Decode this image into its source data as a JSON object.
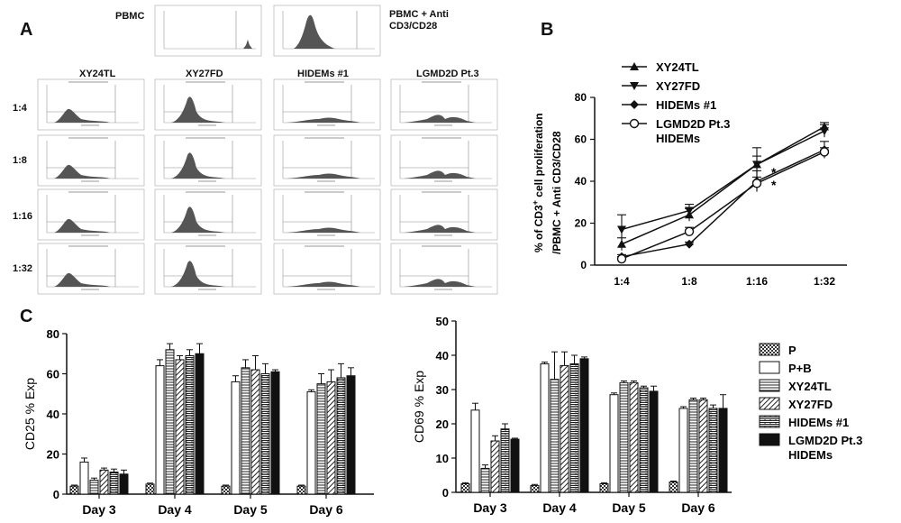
{
  "panels": {
    "a": "A",
    "b": "B",
    "c": "C"
  },
  "flow": {
    "top_labels": [
      "PBMC",
      "PBMC + Anti\nCD3/CD28"
    ],
    "columns": [
      "XY24TL",
      "XY27FD",
      "HIDEMs #1",
      "LGMD2D Pt.3"
    ],
    "rows": [
      "1:4",
      "1:8",
      "1:16",
      "1:32"
    ]
  },
  "chart_data": [
    {
      "id": "B",
      "type": "line",
      "title": "",
      "xlabel": "",
      "ylabel": "% of CD3+ cell proliferation /PBMC + Anti CD3/CD28",
      "ylabel_line1": "% of CD3",
      "ylabel_sup": "+",
      "ylabel_line1_rest": " cell proliferation",
      "ylabel_line2": "/PBMC + Anti CD3/CD28",
      "categories": [
        "1:4",
        "1:8",
        "1:16",
        "1:32"
      ],
      "ylim": [
        0,
        80
      ],
      "yticks": [
        0,
        20,
        40,
        60,
        80
      ],
      "series": [
        {
          "name": "XY24TL",
          "marker": "triangle-up",
          "values": [
            10,
            24,
            48,
            66
          ],
          "err": [
            3,
            3,
            4,
            2
          ]
        },
        {
          "name": "XY27FD",
          "marker": "triangle-down",
          "values": [
            17,
            26,
            48,
            64
          ],
          "err": [
            7,
            3,
            8,
            3
          ]
        },
        {
          "name": "HIDEMs #1",
          "marker": "diamond",
          "values": [
            4,
            10,
            40,
            55
          ],
          "err": [
            1,
            1,
            5,
            4
          ]
        },
        {
          "name": "LGMD2D Pt.3\nHIDEMs",
          "marker": "circle-open",
          "values": [
            3,
            16,
            39,
            54
          ],
          "err": [
            1,
            2,
            3,
            2
          ]
        }
      ],
      "annotations": [
        "*",
        "*"
      ],
      "legend": "top-left"
    },
    {
      "id": "C-left",
      "type": "bar",
      "ylabel": "CD25 % Exp",
      "categories": [
        "Day 3",
        "Day 4",
        "Day 5",
        "Day 6"
      ],
      "ylim": [
        0,
        80
      ],
      "yticks": [
        0,
        20,
        40,
        60,
        80
      ],
      "series": [
        {
          "name": "P",
          "pattern": "checker",
          "values": [
            4,
            5,
            4,
            4
          ],
          "err": [
            0.5,
            0.5,
            0.5,
            0.5
          ]
        },
        {
          "name": "P+B",
          "pattern": "white",
          "values": [
            16,
            64,
            56,
            51
          ],
          "err": [
            2,
            3,
            3,
            1
          ]
        },
        {
          "name": "XY24TL",
          "pattern": "hlines",
          "values": [
            7,
            72,
            63,
            55
          ],
          "err": [
            1,
            3,
            4,
            5
          ]
        },
        {
          "name": "XY27FD",
          "pattern": "diag",
          "values": [
            12,
            67,
            62,
            56
          ],
          "err": [
            1,
            2,
            7,
            6
          ]
        },
        {
          "name": "HIDEMs #1",
          "pattern": "brick",
          "values": [
            11,
            69,
            60,
            58
          ],
          "err": [
            1.5,
            3,
            5,
            7
          ]
        },
        {
          "name": "LGMD2D Pt.3\nHIDEMs",
          "pattern": "black",
          "values": [
            10,
            70,
            61,
            59
          ],
          "err": [
            2,
            5,
            1,
            4
          ]
        }
      ]
    },
    {
      "id": "C-right",
      "type": "bar",
      "ylabel": "CD69 % Exp",
      "categories": [
        "Day 3",
        "Day 4",
        "Day 5",
        "Day 6"
      ],
      "ylim": [
        0,
        50
      ],
      "yticks": [
        0,
        10,
        20,
        30,
        40,
        50
      ],
      "series": [
        {
          "name": "P",
          "pattern": "checker",
          "values": [
            2.5,
            2,
            2.5,
            3
          ],
          "err": [
            0.3,
            0.3,
            0.3,
            0.3
          ]
        },
        {
          "name": "P+B",
          "pattern": "white",
          "values": [
            24,
            37.5,
            28.5,
            24.5
          ],
          "err": [
            2,
            0.5,
            0.5,
            0.5
          ]
        },
        {
          "name": "XY24TL",
          "pattern": "hlines",
          "values": [
            7,
            33,
            32,
            27
          ],
          "err": [
            1,
            8,
            0.5,
            0.5
          ]
        },
        {
          "name": "XY27FD",
          "pattern": "diag",
          "values": [
            15,
            37,
            32,
            27
          ],
          "err": [
            1.5,
            4,
            0.5,
            0.5
          ]
        },
        {
          "name": "HIDEMs #1",
          "pattern": "brick",
          "values": [
            18.5,
            37.5,
            30.5,
            24.5
          ],
          "err": [
            1.5,
            2.5,
            0.5,
            1
          ]
        },
        {
          "name": "LGMD2D Pt.3\nHIDEMs",
          "pattern": "black",
          "values": [
            15.5,
            39,
            29.5,
            24.5
          ],
          "err": [
            0.3,
            0.5,
            1.5,
            4
          ]
        }
      ]
    }
  ]
}
